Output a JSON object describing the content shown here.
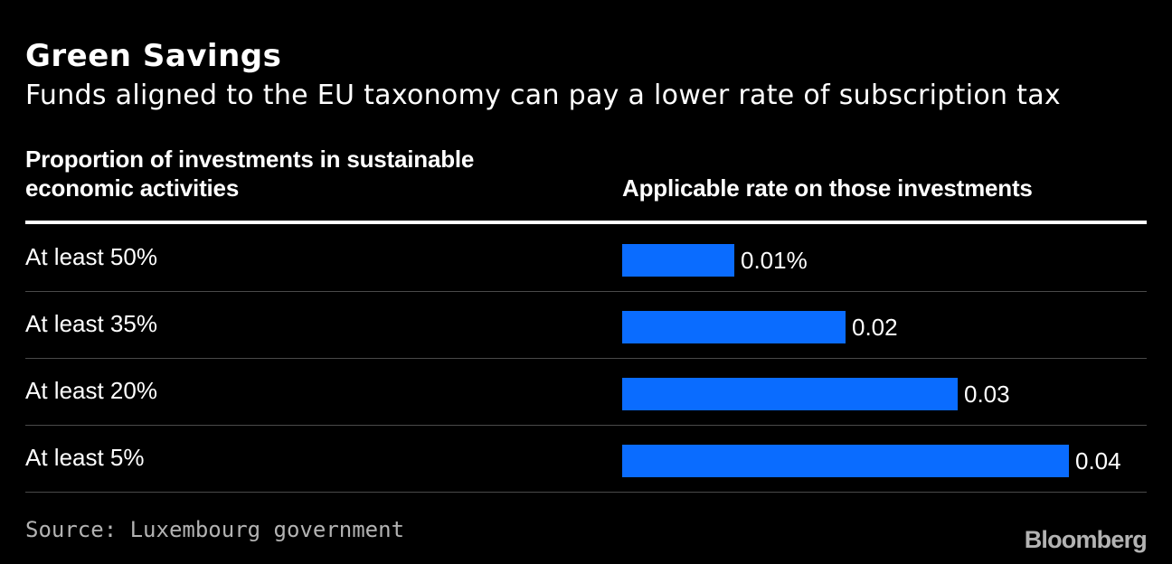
{
  "header": {
    "title": "Green Savings",
    "subtitle": "Funds aligned to the EU taxonomy can pay a lower rate of subscription tax"
  },
  "footer": {
    "source": "Source: Luxembourg government",
    "logo": "Bloomberg"
  },
  "colors": {
    "background": "#000000",
    "bar": "#0a6cff",
    "text": "#ffffff",
    "muted": "#b3b3b3",
    "divider": "#4a4a4a"
  },
  "chart_data": {
    "type": "bar",
    "orientation": "horizontal",
    "column_headers": {
      "category": "Proportion of investments in sustainable economic activities",
      "value": "Applicable rate on those investments"
    },
    "categories": [
      "At least 50%",
      "At least 35%",
      "At least 20%",
      "At least 5%"
    ],
    "values": [
      0.01,
      0.02,
      0.03,
      0.04
    ],
    "value_labels": [
      "0.01%",
      "0.02",
      "0.03",
      "0.04"
    ],
    "value_unit": "%",
    "xlim": [
      0,
      0.04
    ],
    "grid": false,
    "legend": "none"
  }
}
